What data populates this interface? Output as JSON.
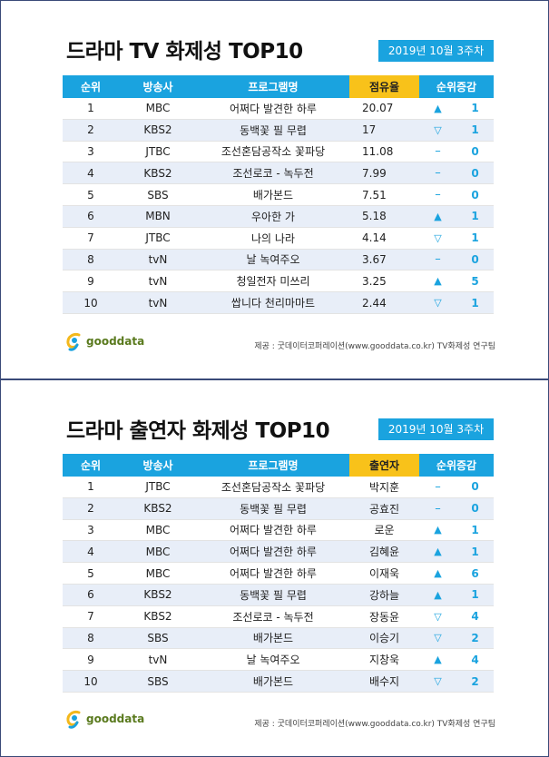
{
  "panel1": {
    "title": "드라마 TV 화제성 TOP10",
    "date": "2019년 10월 3주차",
    "headers": [
      "순위",
      "방송사",
      "프로그램명",
      "점유율",
      "순위증감"
    ],
    "rows": [
      {
        "rank": "1",
        "broadcaster": "MBC",
        "program": "어쩌다 발견한 하루",
        "value": "20.07",
        "dir": "up",
        "change": "1"
      },
      {
        "rank": "2",
        "broadcaster": "KBS2",
        "program": "동백꽃 필 무렵",
        "value": "17",
        "dir": "down",
        "change": "1"
      },
      {
        "rank": "3",
        "broadcaster": "JTBC",
        "program": "조선혼담공작소 꽃파당",
        "value": "11.08",
        "dir": "same",
        "change": "0"
      },
      {
        "rank": "4",
        "broadcaster": "KBS2",
        "program": "조선로코 - 녹두전",
        "value": "7.99",
        "dir": "same",
        "change": "0"
      },
      {
        "rank": "5",
        "broadcaster": "SBS",
        "program": "배가본드",
        "value": "7.51",
        "dir": "same",
        "change": "0"
      },
      {
        "rank": "6",
        "broadcaster": "MBN",
        "program": "우아한 가",
        "value": "5.18",
        "dir": "up",
        "change": "1"
      },
      {
        "rank": "7",
        "broadcaster": "JTBC",
        "program": "나의 나라",
        "value": "4.14",
        "dir": "down",
        "change": "1"
      },
      {
        "rank": "8",
        "broadcaster": "tvN",
        "program": "날 녹여주오",
        "value": "3.67",
        "dir": "same",
        "change": "0"
      },
      {
        "rank": "9",
        "broadcaster": "tvN",
        "program": "청일전자 미쓰리",
        "value": "3.25",
        "dir": "up",
        "change": "5"
      },
      {
        "rank": "10",
        "broadcaster": "tvN",
        "program": "쌉니다 천리마마트",
        "value": "2.44",
        "dir": "down",
        "change": "1"
      }
    ],
    "logo": "gooddata",
    "source": "제공 : 굿데이터코퍼레이션(www.gooddata.co.kr) TV화제성 연구팀"
  },
  "panel2": {
    "title": "드라마 출연자 화제성 TOP10",
    "date": "2019년 10월 3주차",
    "headers": [
      "순위",
      "방송사",
      "프로그램명",
      "출연자",
      "순위증감"
    ],
    "rows": [
      {
        "rank": "1",
        "broadcaster": "JTBC",
        "program": "조선혼담공작소 꽃파당",
        "value": "박지훈",
        "dir": "same",
        "change": "0"
      },
      {
        "rank": "2",
        "broadcaster": "KBS2",
        "program": "동백꽃 필 무렵",
        "value": "공효진",
        "dir": "same",
        "change": "0"
      },
      {
        "rank": "3",
        "broadcaster": "MBC",
        "program": "어쩌다 발견한 하루",
        "value": "로운",
        "dir": "up",
        "change": "1"
      },
      {
        "rank": "4",
        "broadcaster": "MBC",
        "program": "어쩌다 발견한 하루",
        "value": "김혜윤",
        "dir": "up",
        "change": "1"
      },
      {
        "rank": "5",
        "broadcaster": "MBC",
        "program": "어쩌다 발견한 하루",
        "value": "이재욱",
        "dir": "up",
        "change": "6"
      },
      {
        "rank": "6",
        "broadcaster": "KBS2",
        "program": "동백꽃 필 무렵",
        "value": "강하늘",
        "dir": "up",
        "change": "1"
      },
      {
        "rank": "7",
        "broadcaster": "KBS2",
        "program": "조선로코 - 녹두전",
        "value": "장동윤",
        "dir": "down",
        "change": "4"
      },
      {
        "rank": "8",
        "broadcaster": "SBS",
        "program": "배가본드",
        "value": "이승기",
        "dir": "down",
        "change": "2"
      },
      {
        "rank": "9",
        "broadcaster": "tvN",
        "program": "날 녹여주오",
        "value": "지창욱",
        "dir": "up",
        "change": "4"
      },
      {
        "rank": "10",
        "broadcaster": "SBS",
        "program": "배가본드",
        "value": "배수지",
        "dir": "down",
        "change": "2"
      }
    ],
    "logo": "gooddata",
    "source": "제공 : 굿데이터코퍼레이션(www.gooddata.co.kr) TV화제성 연구팀"
  },
  "colors": {
    "header_blue": "#1aa3df",
    "header_yellow": "#f8c21a",
    "row_alt": "#e8eef8",
    "logo_green": "#5a7a1e",
    "logo_blue": "#1aa3df",
    "logo_yellow": "#f3b81c"
  },
  "icons": {
    "up": "up-triangle-icon",
    "down": "down-triangle-outline-icon",
    "same": "dash-icon"
  }
}
